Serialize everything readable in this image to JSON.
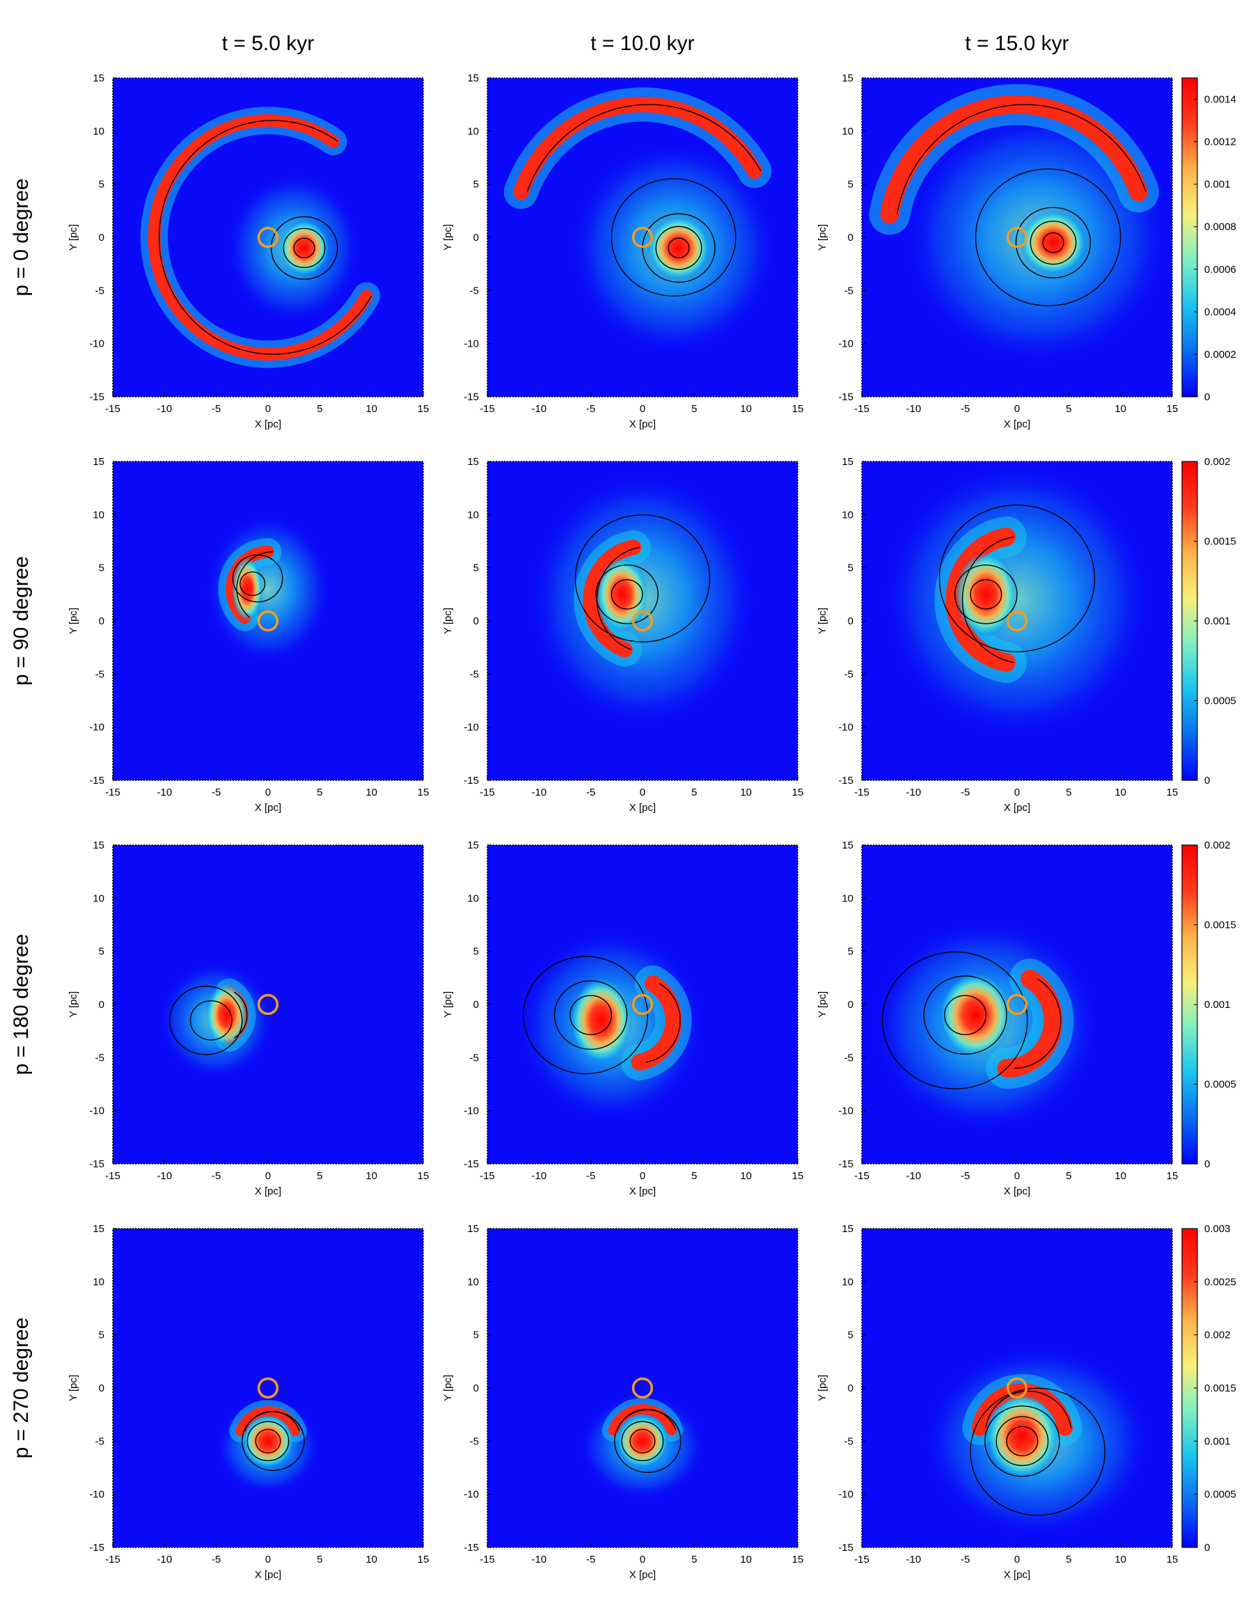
{
  "colors": {
    "background_field": "#0a0af8",
    "axis": "#000000",
    "contour": "#000000",
    "marker_ring": "#f39c1f",
    "colormap": [
      "#0000ff",
      "#0a6cf0",
      "#19c4f0",
      "#7ff0c0",
      "#f8f07a",
      "#ffb34a",
      "#ff3a1e",
      "#ff0000"
    ]
  },
  "chart_data": {
    "type": "heatmap",
    "layout": "4 rows x 3 columns grid of panels",
    "column_titles": [
      "t = 5.0 kyr",
      "t = 10.0 kyr",
      "t = 15.0 kyr"
    ],
    "row_titles": [
      "p = 0 degree",
      "p = 90 degree",
      "p = 180 degree",
      "p = 270 degree"
    ],
    "xlabel": "X [pc]",
    "ylabel": "Y [pc]",
    "xlim": [
      -15,
      15
    ],
    "ylim": [
      -15,
      15
    ],
    "xticks": [
      "-15",
      "-10",
      "-5",
      "0",
      "5",
      "10",
      "15"
    ],
    "yticks": [
      "15",
      "10",
      "5",
      "0",
      "-5",
      "-10",
      "-15"
    ],
    "colorbars": [
      {
        "row": 0,
        "range": [
          0,
          0.0015
        ],
        "ticks": [
          "0.0014",
          "0.0012",
          "0.001",
          "0.0008",
          "0.0006",
          "0.0004",
          "0.0002",
          "0"
        ],
        "tick_values": [
          0.0014,
          0.0012,
          0.001,
          0.0008,
          0.0006,
          0.0004,
          0.0002,
          0
        ]
      },
      {
        "row": 1,
        "range": [
          0,
          0.002
        ],
        "ticks": [
          "0.002",
          "0.0015",
          "0.001",
          "0.0005",
          "0"
        ],
        "tick_values": [
          0.002,
          0.0015,
          0.001,
          0.0005,
          0
        ]
      },
      {
        "row": 2,
        "range": [
          0,
          0.002
        ],
        "ticks": [
          "0.002",
          "0.0015",
          "0.001",
          "0.0005",
          "0"
        ],
        "tick_values": [
          0.002,
          0.0015,
          0.001,
          0.0005,
          0
        ]
      },
      {
        "row": 3,
        "range": [
          0,
          0.003
        ],
        "ticks": [
          "0.003",
          "0.0025",
          "0.002",
          "0.0015",
          "0.001",
          "0.0005",
          "0"
        ],
        "tick_values": [
          0.003,
          0.0025,
          0.002,
          0.0015,
          0.001,
          0.0005,
          0
        ]
      }
    ],
    "marker": {
      "shape": "circle",
      "x": 0,
      "y": 0,
      "radius_pc": 0.9
    },
    "panels": [
      {
        "row": 0,
        "col": 0,
        "core": [
          3.5,
          -1,
          2.4,
          2.6
        ],
        "halo": [
          2.5,
          -1,
          6.5,
          7
        ],
        "arc": {
          "cx": 0,
          "cy": 0,
          "r": 11,
          "a0": 55,
          "a1": 330,
          "w": 1.2
        },
        "contour_rings": [
          [
            3.5,
            -1,
            1
          ],
          [
            3.5,
            -1,
            2
          ],
          [
            3.5,
            -1,
            3.2
          ]
        ]
      },
      {
        "row": 0,
        "col": 1,
        "core": [
          3.5,
          -1,
          3,
          3
        ],
        "halo": [
          3,
          -1,
          10,
          10
        ],
        "arc": {
          "cx": 0,
          "cy": 0,
          "r": 12.5,
          "a0": 30,
          "a1": 160,
          "w": 1.5
        },
        "contour_rings": [
          [
            3.5,
            -1,
            1
          ],
          [
            3.5,
            -1,
            2.2
          ],
          [
            3.5,
            -1,
            3.5
          ],
          [
            3,
            0,
            6
          ]
        ]
      },
      {
        "row": 0,
        "col": 2,
        "core": [
          3.5,
          -0.5,
          3.2,
          3
        ],
        "halo": [
          2,
          0,
          13,
          12
        ],
        "arc": {
          "cx": 0,
          "cy": 0,
          "r": 12.5,
          "a0": 20,
          "a1": 170,
          "w": 1.8
        },
        "contour_rings": [
          [
            3.5,
            -0.5,
            1
          ],
          [
            3.5,
            -0.5,
            2.2
          ],
          [
            3.5,
            -0.5,
            3.6
          ],
          [
            3,
            0,
            7
          ]
        ]
      },
      {
        "row": 1,
        "col": 0,
        "core": [
          -2,
          3,
          1.5,
          3
        ],
        "halo": [
          0,
          3,
          6,
          7
        ],
        "arc": {
          "cx": 0,
          "cy": 3,
          "r": 3.5,
          "a0": 90,
          "a1": 230,
          "w": 1.2
        },
        "contour_rings": [
          [
            -1.5,
            3.5,
            1.2
          ],
          [
            -1,
            4,
            2.4
          ]
        ]
      },
      {
        "row": 1,
        "col": 1,
        "core": [
          -2,
          2.5,
          2.5,
          3.5
        ],
        "halo": [
          0,
          2,
          11,
          12
        ],
        "arc": {
          "cx": 0,
          "cy": 2,
          "r": 5,
          "a0": 100,
          "a1": 250,
          "w": 1.5
        },
        "contour_rings": [
          [
            -1.5,
            2.5,
            1.5
          ],
          [
            -1.5,
            2.5,
            3
          ],
          [
            0,
            4,
            6.5
          ]
        ]
      },
      {
        "row": 1,
        "col": 2,
        "core": [
          -3,
          2.5,
          3,
          4
        ],
        "halo": [
          0,
          2,
          13,
          13
        ],
        "arc": {
          "cx": 0,
          "cy": 2,
          "r": 6,
          "a0": 100,
          "a1": 260,
          "w": 1.8
        },
        "contour_rings": [
          [
            -3,
            2.5,
            1.5
          ],
          [
            -3,
            2.5,
            3
          ],
          [
            0,
            4,
            7.5
          ]
        ]
      },
      {
        "row": 2,
        "col": 0,
        "core": [
          -4,
          -1,
          2,
          3
        ],
        "halo": [
          -5,
          -1.5,
          5.5,
          5.5
        ],
        "arc": {
          "cx": -5,
          "cy": -1,
          "r": 2.5,
          "a0": -60,
          "a1": 60,
          "w": 1.2
        },
        "contour_rings": [
          [
            -5.5,
            -1.5,
            2
          ],
          [
            -6,
            -1.5,
            3.5
          ]
        ]
      },
      {
        "row": 2,
        "col": 1,
        "core": [
          -4,
          -1.5,
          3,
          4
        ],
        "halo": [
          -3,
          -2,
          9,
          9
        ],
        "arc": {
          "cx": -1,
          "cy": -1.5,
          "r": 4,
          "a0": -80,
          "a1": 60,
          "w": 1.6
        },
        "contour_rings": [
          [
            -5,
            -1,
            2
          ],
          [
            -5,
            -1,
            3.5
          ],
          [
            -5.5,
            -1,
            6
          ]
        ]
      },
      {
        "row": 2,
        "col": 2,
        "core": [
          -4,
          -1,
          3.5,
          4
        ],
        "halo": [
          -3,
          -2,
          11,
          10
        ],
        "arc": {
          "cx": -1,
          "cy": -1.5,
          "r": 4.5,
          "a0": -90,
          "a1": 60,
          "w": 1.8
        },
        "contour_rings": [
          [
            -5,
            -1,
            2
          ],
          [
            -5,
            -1,
            4
          ],
          [
            -6,
            -1.5,
            7
          ]
        ]
      },
      {
        "row": 3,
        "col": 0,
        "core": [
          0,
          -5,
          2.5,
          2.5
        ],
        "halo": [
          0,
          -5.5,
          5,
          4.5
        ],
        "arc": {
          "cx": 0,
          "cy": -5,
          "r": 2.8,
          "a0": 20,
          "a1": 160,
          "w": 1
        },
        "contour_rings": [
          [
            0,
            -5,
            1.2
          ],
          [
            0,
            -5,
            2
          ],
          [
            0.5,
            -5,
            3
          ]
        ]
      },
      {
        "row": 3,
        "col": 1,
        "core": [
          0,
          -5,
          2.5,
          2.5
        ],
        "halo": [
          0,
          -5.5,
          6,
          5
        ],
        "arc": {
          "cx": 0,
          "cy": -5,
          "r": 3,
          "a0": 20,
          "a1": 160,
          "w": 1
        },
        "contour_rings": [
          [
            0,
            -5,
            1.2
          ],
          [
            0,
            -5,
            2
          ],
          [
            0.5,
            -5,
            3.2
          ]
        ]
      },
      {
        "row": 3,
        "col": 2,
        "core": [
          0.5,
          -4.5,
          3.5,
          4
        ],
        "halo": [
          2,
          -5,
          11,
          9
        ],
        "arc": {
          "cx": 0.5,
          "cy": -4.5,
          "r": 4.2,
          "a0": 10,
          "a1": 170,
          "w": 1.5
        },
        "contour_rings": [
          [
            0.5,
            -5,
            1.5
          ],
          [
            0.5,
            -5,
            2.5
          ],
          [
            0.5,
            -5,
            3.6
          ],
          [
            2,
            -6,
            6.5
          ]
        ]
      }
    ]
  }
}
